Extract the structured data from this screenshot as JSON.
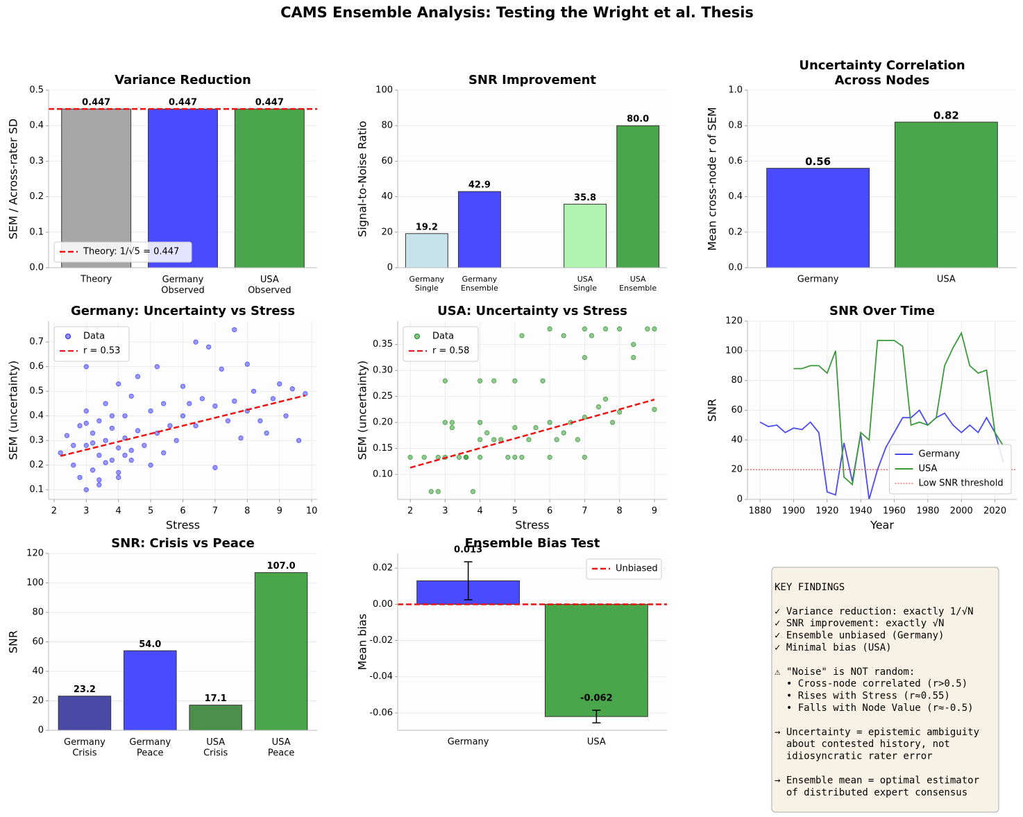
{
  "figure_title": "CAMS Ensemble Analysis: Testing the Wright et al. Thesis",
  "chart_data": [
    {
      "type": "bar",
      "title": "Variance Reduction",
      "ylabel": "SEM / Across-rater SD",
      "categories": [
        "Theory",
        "Germany\nObserved",
        "USA\nObserved"
      ],
      "values": [
        0.447,
        0.447,
        0.447
      ],
      "colors": [
        "#a6a6a6",
        "#4a4aff",
        "#4aa64a"
      ],
      "hline": {
        "name": "Theory: 1/√5 = 0.447",
        "value": 0.447,
        "color": "#ee1111",
        "style": "dashed"
      },
      "ylim": [
        0,
        0.5
      ],
      "yticks": [
        {
          "value": 0,
          "label": "0.0"
        },
        0.1,
        0.2,
        0.3,
        0.4,
        0.5
      ],
      "grid": true,
      "legend": "lower left"
    },
    {
      "type": "bar",
      "title": "SNR Improvement",
      "ylabel": "Signal-to-Noise Ratio",
      "categories": [
        "Germany\nSingle",
        "Germany\nEnsemble",
        "USA\nSingle",
        "USA\nEnsemble"
      ],
      "values": [
        19.2,
        42.9,
        35.8,
        80
      ],
      "value_labels": [
        "19.2",
        "42.9",
        "35.8",
        "80.0"
      ],
      "colors": [
        "#c6e3ec",
        "#4a4aff",
        "#b0f2b0",
        "#4aa64a"
      ],
      "ylim": [
        0,
        100
      ],
      "yticks": [
        0,
        20,
        40,
        60,
        80,
        100
      ],
      "grid": true
    },
    {
      "type": "bar",
      "title": "Uncertainty Correlation\nAcross Nodes",
      "ylabel": "Mean cross-node r of SEM",
      "categories": [
        "Germany",
        "USA"
      ],
      "values": [
        0.56,
        0.82
      ],
      "colors": [
        "#4a4aff",
        "#4aa64a"
      ],
      "ylim": [
        0,
        1
      ],
      "yticks": [
        {
          "value": 0,
          "label": "0.0"
        },
        0.2,
        0.4,
        0.6,
        0.8,
        {
          "value": 1,
          "label": "1.0"
        }
      ],
      "grid": true
    },
    {
      "type": "scatter",
      "title": "Germany: Uncertainty vs Stress",
      "xlabel": "Stress",
      "ylabel": "SEM (uncertainty)",
      "series": [
        {
          "name": "Data",
          "color": "#2222ff",
          "x": [
            2.2,
            2.4,
            2.6,
            2.8,
            2.8,
            3.0,
            3.0,
            3.0,
            3.0,
            3.2,
            3.2,
            3.4,
            3.4,
            3.4,
            3.6,
            3.6,
            3.8,
            3.8,
            4.0,
            4.0,
            4.0,
            4.2,
            4.2,
            4.4,
            4.4,
            4.6,
            4.6,
            4.8,
            5.0,
            5.0,
            5.2,
            5.2,
            5.4,
            5.6,
            5.8,
            6.0,
            6.0,
            6.2,
            6.4,
            6.4,
            6.6,
            6.8,
            7.0,
            7.0,
            7.2,
            7.4,
            7.6,
            7.6,
            7.8,
            8.0,
            8.0,
            8.2,
            8.4,
            8.6,
            8.8,
            9.0,
            9.2,
            9.4,
            9.6,
            9.8,
            3.0,
            3.2,
            3.6,
            4.0,
            4.4,
            2.6,
            3.4,
            5.4,
            3.8,
            4.2
          ],
          "values": [
            0.25,
            0.32,
            0.2,
            0.36,
            0.15,
            0.6,
            0.42,
            0.1,
            0.28,
            0.33,
            0.18,
            0.38,
            0.24,
            0.12,
            0.45,
            0.3,
            0.22,
            0.35,
            0.53,
            0.27,
            0.17,
            0.4,
            0.31,
            0.48,
            0.22,
            0.56,
            0.34,
            0.28,
            0.42,
            0.2,
            0.6,
            0.33,
            0.25,
            0.36,
            0.3,
            0.52,
            0.4,
            0.45,
            0.7,
            0.36,
            0.47,
            0.68,
            0.44,
            0.19,
            0.59,
            0.38,
            0.75,
            0.46,
            0.31,
            0.61,
            0.42,
            0.5,
            0.38,
            0.33,
            0.47,
            0.53,
            0.4,
            0.51,
            0.3,
            0.49,
            0.37,
            0.29,
            0.21,
            0.15,
            0.26,
            0.28,
            0.14,
            0.45,
            0.4,
            0.24
          ]
        }
      ],
      "trend": {
        "name": "r = 0.53",
        "color": "#ee1111",
        "x": [
          2.2,
          9.8
        ],
        "values": [
          0.237,
          0.483
        ]
      },
      "xlim": [
        1.83,
        10.17
      ],
      "xticks": [
        2,
        3,
        4,
        5,
        6,
        7,
        8,
        9,
        10
      ],
      "ylim": [
        0.061,
        0.785
      ],
      "yticks": [
        0.1,
        0.2,
        0.3,
        0.4,
        0.5,
        0.6,
        0.7
      ],
      "grid": true,
      "legend": "upper left"
    },
    {
      "type": "scatter",
      "title": "USA: Uncertainty vs Stress",
      "xlabel": "Stress",
      "ylabel": "SEM (uncertainty)",
      "series": [
        {
          "name": "Data",
          "color": "#118811",
          "x": [
            2.0,
            2.4,
            2.6,
            2.8,
            3.0,
            3.0,
            3.0,
            3.2,
            3.4,
            3.6,
            3.8,
            4.0,
            4.0,
            4.0,
            4.0,
            4.2,
            4.4,
            4.6,
            4.8,
            5.0,
            5.0,
            5.0,
            5.2,
            5.4,
            5.6,
            5.8,
            6.0,
            6.0,
            6.0,
            6.2,
            6.4,
            6.6,
            6.8,
            7.0,
            7.0,
            7.0,
            7.0,
            7.2,
            7.4,
            7.6,
            7.6,
            7.8,
            8.0,
            8.0,
            8.4,
            8.4,
            8.8,
            9.0,
            9.0,
            2.8,
            3.2,
            3.6,
            4.4,
            5.2,
            6.4
          ],
          "values": [
            0.133,
            0.133,
            0.067,
            0.067,
            0.28,
            0.2,
            0.133,
            0.19,
            0.133,
            0.133,
            0.067,
            0.28,
            0.2,
            0.167,
            0.133,
            0.18,
            0.28,
            0.167,
            0.133,
            0.28,
            0.19,
            0.133,
            0.367,
            0.167,
            0.19,
            0.28,
            0.38,
            0.2,
            0.133,
            0.167,
            0.367,
            0.2,
            0.167,
            0.38,
            0.325,
            0.21,
            0.133,
            0.367,
            0.23,
            0.38,
            0.245,
            0.2,
            0.38,
            0.22,
            0.35,
            0.325,
            0.38,
            0.38,
            0.225,
            0.133,
            0.2,
            0.133,
            0.167,
            0.133,
            0.18
          ]
        }
      ],
      "trend": {
        "name": "r = 0.58",
        "color": "#ee1111",
        "x": [
          2,
          9
        ],
        "values": [
          0.113,
          0.244
        ]
      },
      "xlim": [
        1.64,
        9.36
      ],
      "xticks": [
        2,
        3,
        4,
        5,
        6,
        7,
        8,
        9
      ],
      "ylim": [
        0.052,
        0.395
      ],
      "yticks": [
        {
          "value": 0.1,
          "label": "0.10"
        },
        0.15,
        {
          "value": 0.2,
          "label": "0.20"
        },
        0.25,
        {
          "value": 0.3,
          "label": "0.30"
        },
        0.35
      ],
      "grid": true,
      "legend": "upper left"
    },
    {
      "type": "line",
      "title": "SNR Over Time",
      "xlabel": "Year",
      "ylabel": "SNR",
      "x": [
        1880,
        1885,
        1890,
        1895,
        1900,
        1905,
        1910,
        1915,
        1920,
        1925,
        1930,
        1935,
        1940,
        1945,
        1950,
        1955,
        1960,
        1965,
        1970,
        1975,
        1980,
        1985,
        1990,
        1995,
        2000,
        2005,
        2010,
        2015,
        2020,
        2025
      ],
      "series": [
        {
          "name": "Germany",
          "color": "#4a4aee",
          "values": [
            52,
            49,
            50,
            45,
            48,
            47,
            52,
            45,
            5,
            3,
            38,
            12,
            44,
            0,
            20,
            35,
            45,
            55,
            55,
            60,
            50,
            55,
            58,
            50,
            45,
            50,
            45,
            55,
            45,
            25
          ]
        },
        {
          "name": "USA",
          "color": "#3a9a3a",
          "values": [
            null,
            null,
            null,
            null,
            88,
            88,
            90,
            90,
            85,
            100,
            15,
            10,
            45,
            40,
            107,
            107,
            107,
            103,
            50,
            52,
            50,
            55,
            90,
            102,
            112,
            90,
            85,
            87,
            45,
            36
          ]
        }
      ],
      "hline": {
        "name": "Low SNR threshold",
        "value": 20,
        "color": "#f07070",
        "style": "dotted"
      },
      "xlim": [
        1872.5,
        2033
      ],
      "xticks": [
        1880,
        1900,
        1920,
        1940,
        1960,
        1980,
        2000,
        2020
      ],
      "ylim": [
        0,
        120
      ],
      "yticks": [
        0,
        20,
        40,
        60,
        80,
        100,
        120
      ],
      "grid": true,
      "legend": "lower right"
    },
    {
      "type": "bar",
      "title": "SNR: Crisis vs Peace",
      "ylabel": "SNR",
      "categories": [
        "Germany\nCrisis",
        "Germany\nPeace",
        "USA\nCrisis",
        "USA\nPeace"
      ],
      "values": [
        23.2,
        54,
        17.1,
        107
      ],
      "value_labels": [
        "23.2",
        "54.0",
        "17.1",
        "107.0"
      ],
      "colors": [
        "#4a4aa6",
        "#4a4aff",
        "#4a8f4a",
        "#4aa64a"
      ],
      "ylim": [
        0,
        120
      ],
      "yticks": [
        0,
        20,
        40,
        60,
        80,
        100,
        120
      ],
      "grid": true
    },
    {
      "type": "bar",
      "title": "Ensemble Bias Test",
      "ylabel": "Mean bias",
      "categories": [
        "Germany",
        "USA"
      ],
      "values": [
        0.013,
        -0.062
      ],
      "errors": [
        0.0105,
        0.0035
      ],
      "colors": [
        "#4a4aff",
        "#4aa64a"
      ],
      "hline": {
        "name": "Unbiased",
        "value": 0,
        "color": "#ee1111",
        "style": "dashed"
      },
      "ylim": [
        -0.0696,
        0.0281
      ],
      "yticks": [
        0.02,
        {
          "value": 0,
          "label": "0.00"
        },
        -0.02,
        -0.04,
        -0.06
      ],
      "grid": true,
      "legend": "upper right"
    }
  ],
  "key_findings": [
    [
      "KEY FINDINGS"
    ],
    [
      "✓ Variance reduction: exactly 1/√N",
      "✓ SNR improvement: exactly √N",
      "✓ Ensemble unbiased (Germany)",
      "✓ Minimal bias (USA)"
    ],
    [
      "⚠ \"Noise\" is NOT random:",
      "  • Cross-node correlated (r>0.5)",
      "  • Rises with Stress (r≈0.55)",
      "  • Falls with Node Value (r≈-0.5)"
    ],
    [
      "→ Uncertainty = epistemic ambiguity",
      "  about contested history, not",
      "  idiosyncratic rater error"
    ],
    [
      "→ Ensemble mean = optimal estimator",
      "  of distributed expert consensus"
    ]
  ]
}
